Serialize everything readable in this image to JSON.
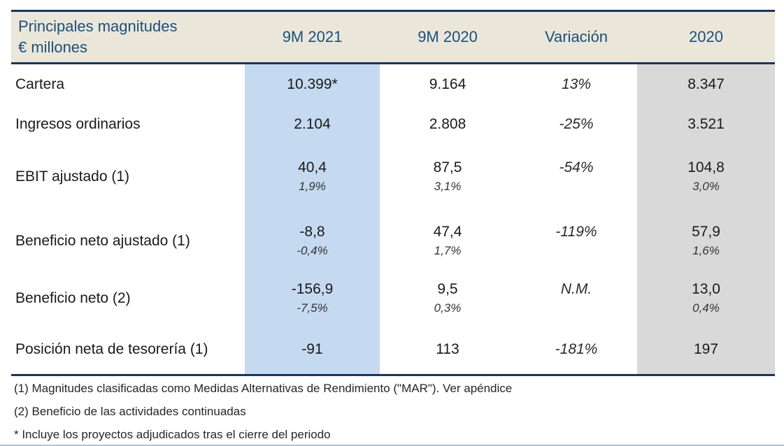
{
  "header": {
    "title_line1": "Principales magnitudes",
    "title_line2": "€ millones",
    "col_9m2021": "9M 2021",
    "col_9m2020": "9M 2020",
    "col_variacion": "Variación",
    "col_2020": "2020"
  },
  "rows": [
    {
      "label": "Cartera",
      "m2021": "10.399*",
      "m2021_sub": "",
      "m2020": "9.164",
      "m2020_sub": "",
      "variacion": "13%",
      "fy2020": "8.347",
      "fy2020_sub": ""
    },
    {
      "label": "Ingresos ordinarios",
      "m2021": "2.104",
      "m2021_sub": "",
      "m2020": "2.808",
      "m2020_sub": "",
      "variacion": "-25%",
      "fy2020": "3.521",
      "fy2020_sub": ""
    },
    {
      "label": "EBIT ajustado (1)",
      "m2021": "40,4",
      "m2021_sub": "1,9%",
      "m2020": "87,5",
      "m2020_sub": "3,1%",
      "variacion": "-54%",
      "fy2020": "104,8",
      "fy2020_sub": "3,0%"
    },
    {
      "label": "Beneficio neto ajustado (1)",
      "m2021": "-8,8",
      "m2021_sub": "-0,4%",
      "m2020": "47,4",
      "m2020_sub": "1,7%",
      "variacion": "-119%",
      "fy2020": "57,9",
      "fy2020_sub": "1,6%"
    },
    {
      "label": "Beneficio neto (2)",
      "m2021": "-156,9",
      "m2021_sub": "-7,5%",
      "m2020": "9,5",
      "m2020_sub": "0,3%",
      "variacion": "N.M.",
      "fy2020": "13,0",
      "fy2020_sub": "0,4%"
    },
    {
      "label": "Posición neta de tesorería (1)",
      "m2021": "-91",
      "m2021_sub": "",
      "m2020": "113",
      "m2020_sub": "",
      "variacion": "-181%",
      "fy2020": "197",
      "fy2020_sub": ""
    }
  ],
  "footnotes": [
    "(1) Magnitudes clasificadas como Medidas Alternativas de Rendimiento (\"MAR\"). Ver apéndice",
    "(2) Beneficio de las actividades continuadas",
    "* Incluye los proyectos adjudicados tras el cierre del periodo"
  ],
  "colors": {
    "navy_rule": "#17375d",
    "header_text": "#1f4e79",
    "header_bg": "#eae7da",
    "col_9m2021_bg": "#c5d9f1",
    "col_2020_bg": "#d9d9d9",
    "body_text": "#1a1a1a",
    "bottom_edge_line": "#b7c3d4"
  }
}
